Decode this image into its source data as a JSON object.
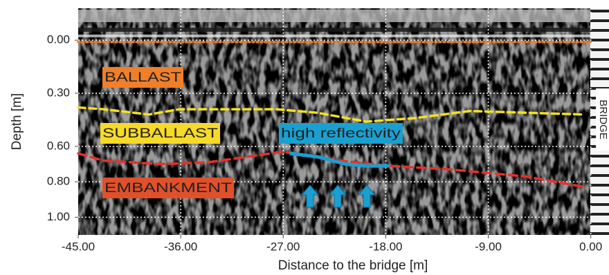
{
  "chart_data": {
    "type": "radargram",
    "xlabel": "Distance to the bridge [m]",
    "ylabel": "Depth [m]",
    "xlim": [
      -45,
      1.6
    ],
    "ylim": [
      1.1,
      -0.18
    ],
    "xticks": [
      {
        "value": -45,
        "label": "-45.00"
      },
      {
        "value": -36,
        "label": "-36.00"
      },
      {
        "value": -27,
        "label": "-27.00"
      },
      {
        "value": -18,
        "label": "-18.00"
      },
      {
        "value": -9,
        "label": "-9.00"
      },
      {
        "value": 0,
        "label": "0.00"
      }
    ],
    "yticks": [
      {
        "value": 0,
        "label": "0.00"
      },
      {
        "value": 0.3,
        "label": "0.30"
      },
      {
        "value": 0.6,
        "label": "0.60"
      },
      {
        "value": 0.8,
        "label": "0.80"
      },
      {
        "value": 1.0,
        "label": "1.00"
      }
    ],
    "grid": true,
    "series": [
      {
        "color": "#f07f2a",
        "dash": "2 4",
        "x": [
          -45,
          0
        ],
        "values": [
          0.01,
          0.01
        ]
      },
      {
        "color": "#f5e11e",
        "dash": "10 6",
        "x": [
          -45,
          -42.8,
          -38.8,
          -36.1,
          -27.6,
          -24,
          -19.7,
          -15.4,
          -10.6,
          -5.7,
          -0.5
        ],
        "values": [
          0.38,
          0.39,
          0.42,
          0.39,
          0.39,
          0.41,
          0.46,
          0.44,
          0.4,
          0.41,
          0.42
        ]
      },
      {
        "color": "#e8302a",
        "dash": "12 7",
        "x": [
          -45,
          -42.8,
          -37.9,
          -33.6,
          -27,
          -22,
          -17.8,
          -12.4,
          -5.7,
          -0.5
        ],
        "values": [
          0.64,
          0.68,
          0.7,
          0.69,
          0.63,
          0.68,
          0.71,
          0.73,
          0.77,
          0.83
        ]
      },
      {
        "color": "#1a9fd0",
        "dash": "none",
        "x": [
          -26.3,
          -23.9,
          -21.5,
          -19.7,
          -17.8
        ],
        "values": [
          0.64,
          0.66,
          0.7,
          0.71,
          0.71
        ]
      }
    ],
    "annotations": [
      {
        "text": "BALLAST",
        "color": "#f07f2a"
      },
      {
        "text": "SUBBALLAST",
        "color": "#f7d92a"
      },
      {
        "text": "high reflectivity",
        "color": "#1aa0d0"
      },
      {
        "text": "EMBANKMENT",
        "color": "#e0502a"
      },
      {
        "text": "BRIDGE",
        "color": "#ffffff"
      }
    ]
  }
}
